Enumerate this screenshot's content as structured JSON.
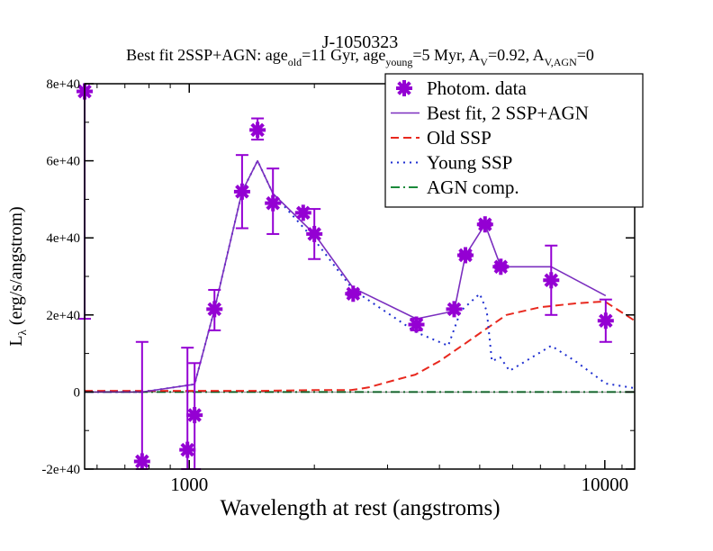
{
  "chart_data": {
    "type": "scatter",
    "object_id": "J-1050323",
    "title_parts": {
      "prefix": "Best fit 2SSP+AGN: age",
      "sub_old": "old",
      "mid1": "=11 Gyr, age",
      "sub_young": "young",
      "mid2": "=5 Myr, A",
      "sub_v": "V",
      "mid3": "=0.92, A",
      "sub_vagn": "V,AGN",
      "suffix": "=0"
    },
    "xlabel": "Wavelength at rest (angstroms)",
    "ylabel_main": "L",
    "ylabel_sub": "λ",
    "ylabel_rest": " (erg/s/angstrom)",
    "xscale": "log",
    "xlim": [
      560,
      11800
    ],
    "ylim": [
      -2e+40,
      8e+40
    ],
    "x_ticks": [
      {
        "value": 1000,
        "label": "1000"
      },
      {
        "value": 10000,
        "label": "10000"
      }
    ],
    "y_ticks": [
      {
        "value": -2e+40,
        "label": "-2e+40"
      },
      {
        "value": 0,
        "label": "0"
      },
      {
        "value": 2e+40,
        "label": "2e+40"
      },
      {
        "value": 4e+40,
        "label": "4e+40"
      },
      {
        "value": 6e+40,
        "label": "6e+40"
      },
      {
        "value": 8e+40,
        "label": "8e+40"
      }
    ],
    "colors": {
      "data": "#9400d3",
      "bestfit": "#7b2fbf",
      "old": "#e8281e",
      "young": "#1e2ed0",
      "agn": "#1a8a3a",
      "axis": "#000000"
    },
    "legend": {
      "position": "top-right",
      "entries": [
        {
          "key": "data",
          "label": "Photom. data"
        },
        {
          "key": "bestfit",
          "label": "Best fit, 2 SSP+AGN"
        },
        {
          "key": "old",
          "label": "Old SSP"
        },
        {
          "key": "young",
          "label": "Young SSP"
        },
        {
          "key": "agn",
          "label": "AGN comp."
        }
      ]
    },
    "photometry": [
      {
        "x": 560,
        "y": 7.8e+40,
        "err_lo": 1.9e+40,
        "err_hi": 7.8e+40
      },
      {
        "x": 770,
        "y": -1.8e+40,
        "err_lo": -2e+40,
        "err_hi": 1.3e+40
      },
      {
        "x": 990,
        "y": -1.5e+40,
        "err_lo": -2e+40,
        "err_hi": 1.15e+40
      },
      {
        "x": 1030,
        "y": -6e+39,
        "err_lo": -2e+40,
        "err_hi": 7.5e+39
      },
      {
        "x": 1150,
        "y": 2.15e+40,
        "err_lo": 1.6e+40,
        "err_hi": 2.65e+40
      },
      {
        "x": 1340,
        "y": 5.2e+40,
        "err_lo": 4.25e+40,
        "err_hi": 6.15e+40
      },
      {
        "x": 1460,
        "y": 6.8e+40,
        "err_lo": 6.55e+40,
        "err_hi": 7.1e+40
      },
      {
        "x": 1590,
        "y": 4.9e+40,
        "err_lo": 4.1e+40,
        "err_hi": 5.8e+40
      },
      {
        "x": 1880,
        "y": 4.65e+40,
        "err_lo": 4.55e+40,
        "err_hi": 4.75e+40
      },
      {
        "x": 2000,
        "y": 4.1e+40,
        "err_lo": 3.45e+40,
        "err_hi": 4.75e+40
      },
      {
        "x": 2480,
        "y": 2.55e+40,
        "err_lo": 2.5e+40,
        "err_hi": 2.6e+40
      },
      {
        "x": 3520,
        "y": 1.75e+40,
        "err_lo": 1.6e+40,
        "err_hi": 1.9e+40
      },
      {
        "x": 4340,
        "y": 2.15e+40,
        "err_lo": 2.05e+40,
        "err_hi": 2.25e+40
      },
      {
        "x": 4620,
        "y": 3.55e+40,
        "err_lo": 3.5e+40,
        "err_hi": 3.6e+40
      },
      {
        "x": 5150,
        "y": 4.35e+40,
        "err_lo": 4.3e+40,
        "err_hi": 4.4e+40
      },
      {
        "x": 5620,
        "y": 3.25e+40,
        "err_lo": 3.2e+40,
        "err_hi": 3.3e+40
      },
      {
        "x": 7430,
        "y": 2.9e+40,
        "err_lo": 2e+40,
        "err_hi": 3.8e+40
      },
      {
        "x": 10050,
        "y": 1.85e+40,
        "err_lo": 1.3e+40,
        "err_hi": 2.4e+40
      }
    ],
    "series": [
      {
        "name": "Best fit, 2 SSP+AGN",
        "key": "bestfit",
        "x": [
          560,
          770,
          1030,
          1150,
          1340,
          1460,
          1590,
          2000,
          2480,
          3520,
          4340,
          4620,
          5150,
          5620,
          7430,
          10050
        ],
        "y": [
          0,
          0,
          2e+39,
          2.15e+40,
          5.2e+40,
          6e+40,
          5.15e+40,
          4.1e+40,
          2.7e+40,
          1.9e+40,
          2.1e+40,
          3.55e+40,
          4.35e+40,
          3.25e+40,
          3.25e+40,
          2.5e+40
        ]
      },
      {
        "name": "Old SSP",
        "key": "old",
        "x": [
          560,
          1000,
          1500,
          2000,
          2450,
          2700,
          3100,
          3500,
          4000,
          4600,
          5200,
          5800,
          7000,
          8500,
          10000,
          11800
        ],
        "y": [
          3e+38,
          3e+38,
          3e+38,
          5e+38,
          5e+38,
          1.2e+39,
          3e+39,
          4.5e+39,
          8e+39,
          1.25e+40,
          1.65e+40,
          2e+40,
          2.2e+40,
          2.3e+40,
          2.35e+40,
          1.85e+40
        ]
      },
      {
        "name": "Young SSP",
        "key": "young",
        "x": [
          560,
          770,
          1030,
          1150,
          1340,
          1460,
          1590,
          2000,
          2480,
          3520,
          4200,
          4500,
          5000,
          5200,
          5350,
          5600,
          5900,
          7430,
          8500,
          10050,
          11800
        ],
        "y": [
          0,
          0,
          2e+39,
          2.15e+40,
          5.2e+40,
          6e+40,
          5.15e+40,
          3.95e+40,
          2.65e+40,
          1.55e+40,
          1.2e+40,
          2.1e+40,
          2.55e+40,
          2.1e+40,
          8e+39,
          9e+39,
          5.5e+39,
          1.2e+40,
          8e+39,
          2.2e+39,
          1e+39
        ]
      },
      {
        "name": "AGN comp.",
        "key": "agn",
        "x": [
          560,
          11800
        ],
        "y": [
          0,
          0
        ]
      }
    ]
  }
}
